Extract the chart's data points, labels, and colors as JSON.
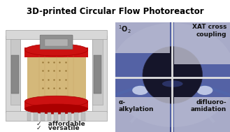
{
  "title": "3D-printed Circular Flow Photoreactor",
  "title_fontsize": 8.5,
  "bg_color": "#ffffff",
  "checkmarks": [
    "✓   affordable",
    "✓   versatile"
  ],
  "checkmark_fontsize": 6.5,
  "label_topleft_super": "1",
  "label_topleft_base": "O",
  "label_topleft_sub": "2",
  "label_topright": "XAT cross\ncoupling",
  "label_bottomleft": "α-\nalkylation",
  "label_bottomright": "difluoro-\namidation",
  "overlay_color": "#c8c8d8",
  "overlay_alpha": 0.78,
  "label_fontsize": 6.5,
  "divider_color": "#e0e0e0",
  "divider_lw": 2.0,
  "photo_bg": "#3c4890",
  "photo_mid": "#6878b8"
}
